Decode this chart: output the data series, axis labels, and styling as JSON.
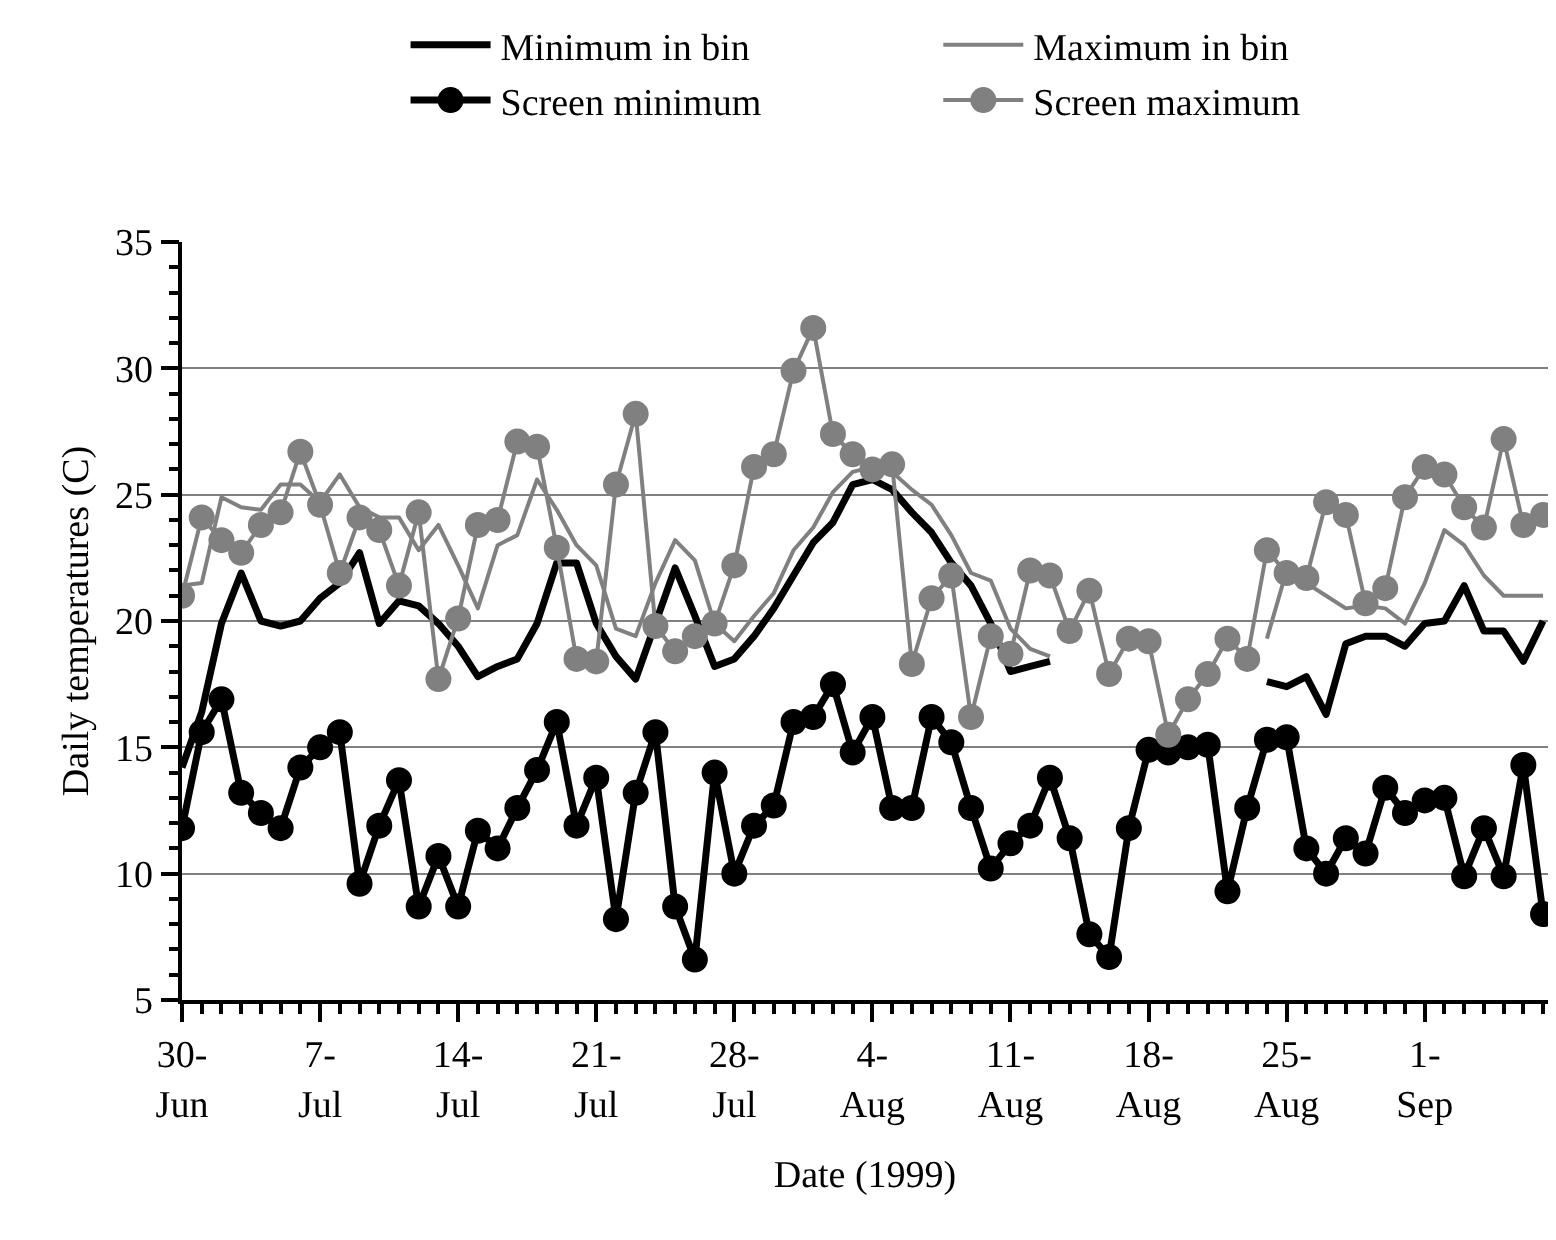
{
  "chart_data": {
    "type": "line",
    "xlabel": "Date (1999)",
    "ylabel": "Daily temperatures (C)",
    "x": [
      "1999-06-30",
      "1999-07-01",
      "1999-07-02",
      "1999-07-03",
      "1999-07-04",
      "1999-07-05",
      "1999-07-06",
      "1999-07-07",
      "1999-07-08",
      "1999-07-09",
      "1999-07-10",
      "1999-07-11",
      "1999-07-12",
      "1999-07-13",
      "1999-07-14",
      "1999-07-15",
      "1999-07-16",
      "1999-07-17",
      "1999-07-18",
      "1999-07-19",
      "1999-07-20",
      "1999-07-21",
      "1999-07-22",
      "1999-07-23",
      "1999-07-24",
      "1999-07-25",
      "1999-07-26",
      "1999-07-27",
      "1999-07-28",
      "1999-07-29",
      "1999-07-30",
      "1999-07-31",
      "1999-08-01",
      "1999-08-02",
      "1999-08-03",
      "1999-08-04",
      "1999-08-05",
      "1999-08-06",
      "1999-08-07",
      "1999-08-08",
      "1999-08-09",
      "1999-08-10",
      "1999-08-11",
      "1999-08-12",
      "1999-08-13",
      "1999-08-14",
      "1999-08-15",
      "1999-08-16",
      "1999-08-17",
      "1999-08-18",
      "1999-08-19",
      "1999-08-20",
      "1999-08-21",
      "1999-08-22",
      "1999-08-23",
      "1999-08-24",
      "1999-08-25",
      "1999-08-26",
      "1999-08-27",
      "1999-08-28",
      "1999-08-29",
      "1999-08-30",
      "1999-08-31",
      "1999-09-01",
      "1999-09-02",
      "1999-09-03",
      "1999-09-04",
      "1999-09-05",
      "1999-09-06",
      "1999-09-07"
    ],
    "series": [
      {
        "name": "Minimum in bin",
        "color": "#000000",
        "marker": "none",
        "values": [
          14.2,
          16.4,
          19.9,
          21.9,
          20.0,
          19.8,
          20.0,
          20.9,
          21.5,
          22.7,
          19.9,
          20.8,
          20.6,
          19.9,
          19.0,
          17.8,
          18.2,
          18.5,
          19.9,
          22.3,
          22.3,
          19.9,
          18.6,
          17.7,
          19.9,
          22.1,
          20.2,
          18.2,
          18.5,
          19.4,
          20.5,
          21.8,
          23.1,
          23.9,
          25.4,
          25.6,
          25.2,
          24.3,
          23.5,
          22.3,
          21.4,
          19.9,
          18.0,
          18.2,
          18.4,
          null,
          null,
          null,
          null,
          null,
          null,
          null,
          null,
          null,
          null,
          17.6,
          17.4,
          17.8,
          16.3,
          19.1,
          19.4,
          19.4,
          19.0,
          19.9,
          20.0,
          21.4,
          19.6,
          19.6,
          18.4,
          20.0
        ]
      },
      {
        "name": "Maximum in bin",
        "color": "#808080",
        "marker": "none",
        "values": [
          21.4,
          21.5,
          24.9,
          24.5,
          24.4,
          25.4,
          25.4,
          24.7,
          25.8,
          24.5,
          24.1,
          24.1,
          22.8,
          23.8,
          22.2,
          20.5,
          23.0,
          23.4,
          25.6,
          24.4,
          23.0,
          22.2,
          19.7,
          19.4,
          21.5,
          23.2,
          22.4,
          19.9,
          19.2,
          20.2,
          21.1,
          22.8,
          23.7,
          25.1,
          25.9,
          26.1,
          25.9,
          25.2,
          24.6,
          23.4,
          21.9,
          21.6,
          19.7,
          18.9,
          18.6,
          null,
          null,
          null,
          null,
          null,
          null,
          null,
          null,
          null,
          null,
          19.3,
          22.0,
          21.5,
          21.0,
          20.5,
          20.6,
          20.5,
          19.9,
          21.5,
          23.6,
          23.0,
          21.8,
          21.0,
          21.0,
          21.0
        ]
      },
      {
        "name": "Screen minimum",
        "color": "#000000",
        "marker": "circle",
        "values": [
          11.8,
          15.6,
          16.9,
          13.2,
          12.4,
          11.8,
          14.2,
          15.0,
          15.6,
          9.6,
          11.9,
          13.7,
          8.7,
          10.7,
          8.7,
          11.7,
          11.0,
          12.6,
          14.1,
          16.0,
          11.9,
          13.8,
          8.2,
          13.2,
          15.6,
          8.7,
          6.6,
          14.0,
          10.0,
          11.9,
          12.7,
          16.0,
          16.2,
          17.5,
          14.8,
          16.2,
          12.6,
          12.6,
          16.2,
          15.2,
          12.6,
          10.2,
          11.2,
          11.9,
          13.8,
          11.4,
          7.6,
          6.7,
          11.8,
          14.9,
          14.8,
          15.0,
          15.1,
          9.3,
          12.6,
          15.3,
          15.4,
          11.0,
          10.0,
          11.4,
          10.8,
          13.4,
          12.4,
          12.9,
          13.0,
          9.9,
          11.8,
          9.9,
          14.3,
          8.4
        ]
      },
      {
        "name": "Screen maximum",
        "color": "#808080",
        "marker": "circle",
        "values": [
          21.0,
          24.1,
          23.2,
          22.7,
          23.8,
          24.3,
          26.7,
          24.6,
          21.9,
          24.1,
          23.6,
          21.4,
          24.3,
          17.7,
          20.1,
          23.8,
          24.0,
          27.1,
          26.9,
          22.9,
          18.5,
          18.4,
          25.4,
          28.2,
          19.8,
          18.8,
          19.4,
          19.9,
          22.2,
          26.1,
          26.6,
          29.9,
          31.6,
          27.4,
          26.6,
          26.0,
          26.2,
          18.3,
          20.9,
          21.8,
          16.2,
          19.4,
          18.7,
          22.0,
          21.8,
          19.6,
          21.2,
          17.9,
          19.3,
          19.2,
          15.5,
          16.9,
          17.9,
          19.3,
          18.5,
          22.8,
          21.9,
          21.7,
          24.7,
          24.2,
          20.7,
          21.3,
          24.9,
          26.1,
          25.8,
          24.5,
          23.7,
          27.2,
          23.8,
          24.2
        ]
      }
    ],
    "xlim": [
      "1999-06-30",
      "1999-09-07T06:00"
    ],
    "xticks": [
      {
        "value": "1999-06-30",
        "label": "30-\nJun"
      },
      {
        "value": "1999-07-07",
        "label": "7-\nJul"
      },
      {
        "value": "1999-07-14",
        "label": "14-\nJul"
      },
      {
        "value": "1999-07-21",
        "label": "21-\nJul"
      },
      {
        "value": "1999-07-28",
        "label": "28-\nJul"
      },
      {
        "value": "1999-08-04",
        "label": "4-\nAug"
      },
      {
        "value": "1999-08-11",
        "label": "11-\nAug"
      },
      {
        "value": "1999-08-18",
        "label": "18-\nAug"
      },
      {
        "value": "1999-08-25",
        "label": "25-\nAug"
      },
      {
        "value": "1999-09-01",
        "label": "1-\nSep"
      }
    ],
    "ylim": [
      5,
      35
    ],
    "yticks": [
      5,
      10,
      15,
      20,
      25,
      30,
      35
    ],
    "grid": "y",
    "legend": "top"
  }
}
